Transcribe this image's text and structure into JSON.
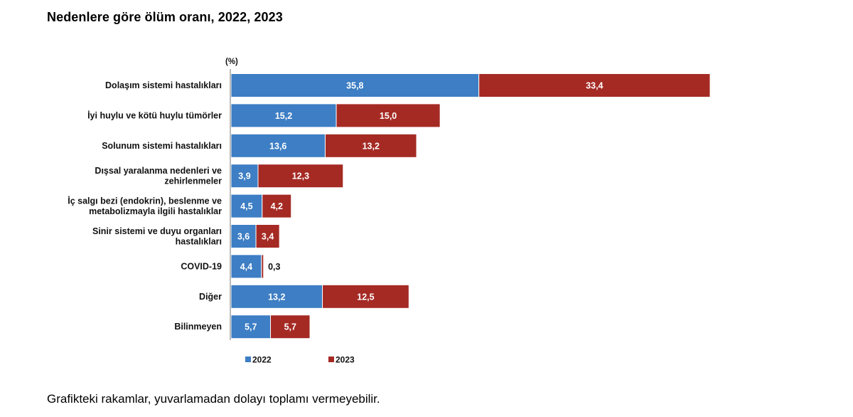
{
  "page": {
    "title": "Nedenlere göre ölüm oranı, 2022, 2023",
    "footnote": "Grafikteki rakamlar, yuvarlamadan dolayı toplamı vermeyebilir."
  },
  "chart_data": {
    "type": "bar",
    "orientation": "horizontal",
    "stacked": true,
    "unit_label": "(%)",
    "categories": [
      [
        "Dolaşım sistemi hastalıkları"
      ],
      [
        "İyi huylu ve kötü huylu tümörler"
      ],
      [
        "Solunum sistemi hastalıkları"
      ],
      [
        "Dışsal yaralanma nedenleri ve",
        "zehirlenmeler"
      ],
      [
        "İç salgı bezi (endokrin), beslenme ve",
        "metabolizmayla ilgili hastalıklar"
      ],
      [
        "Sinir sistemi ve duyu organları",
        "hastalıkları"
      ],
      [
        "COVID-19"
      ],
      [
        "Diğer"
      ],
      [
        "Bilinmeyen"
      ]
    ],
    "series": [
      {
        "name": "2022",
        "color": "#3d7ec4",
        "values": [
          35.8,
          15.2,
          13.6,
          3.9,
          4.5,
          3.6,
          4.4,
          13.2,
          5.7
        ],
        "labels": [
          "35,8",
          "15,2",
          "13,6",
          "3,9",
          "4,5",
          "3,6",
          "4,4",
          "13,2",
          "5,7"
        ]
      },
      {
        "name": "2023",
        "color": "#a52a24",
        "values": [
          33.4,
          15.0,
          13.2,
          12.3,
          4.2,
          3.4,
          0.3,
          12.5,
          5.7
        ],
        "labels": [
          "33,4",
          "15,0",
          "13,2",
          "12,3",
          "4,2",
          "3,4",
          "0,3",
          "12,5",
          "5,7"
        ]
      }
    ],
    "grid": false,
    "legend_position": "bottom"
  }
}
